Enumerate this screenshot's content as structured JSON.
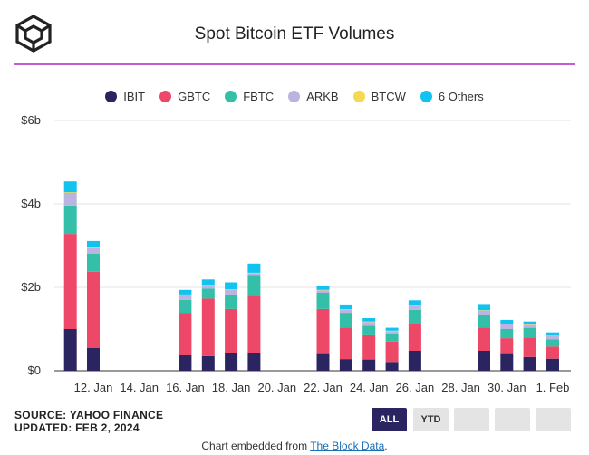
{
  "header": {
    "title": "Spot Bitcoin ETF Volumes"
  },
  "footer": {
    "source": "SOURCE: YAHOO FINANCE",
    "updated": "UPDATED: FEB 2, 2024",
    "embed_prefix": "Chart embedded from ",
    "embed_link": "The Block Data",
    "embed_suffix": "."
  },
  "controls": {
    "all_label": "ALL",
    "ytd_label": "YTD"
  },
  "colors": {
    "IBIT": "#2a2560",
    "GBTC": "#ee4869",
    "FBTC": "#33bfa8",
    "ARKB": "#b9b4e0",
    "BTCW": "#f5d94e",
    "6 Others": "#12c3ef"
  },
  "chart_data": {
    "type": "bar",
    "stacked": true,
    "ylim": [
      0,
      6
    ],
    "yticks": [
      0,
      2,
      4,
      6
    ],
    "ytick_labels": [
      "$0",
      "$2b",
      "$4b",
      "$6b"
    ],
    "xlabels": [
      "12. Jan",
      "14. Jan",
      "16. Jan",
      "18. Jan",
      "20. Jan",
      "22. Jan",
      "24. Jan",
      "26. Jan",
      "28. Jan",
      "30. Jan",
      "1. Feb"
    ],
    "xlabel_dates": [
      "2024-01-12",
      "2024-01-14",
      "2024-01-16",
      "2024-01-18",
      "2024-01-20",
      "2024-01-22",
      "2024-01-24",
      "2024-01-26",
      "2024-01-28",
      "2024-01-30",
      "2024-02-01"
    ],
    "x": [
      "2024-01-11",
      "2024-01-12",
      "2024-01-16",
      "2024-01-17",
      "2024-01-18",
      "2024-01-19",
      "2024-01-22",
      "2024-01-23",
      "2024-01-24",
      "2024-01-25",
      "2024-01-26",
      "2024-01-29",
      "2024-01-30",
      "2024-01-31",
      "2024-02-01"
    ],
    "grid": true,
    "legend_position": "top",
    "series": [
      {
        "name": "IBIT",
        "values": [
          1.0,
          0.55,
          0.37,
          0.35,
          0.42,
          0.42,
          0.4,
          0.28,
          0.27,
          0.21,
          0.48,
          0.48,
          0.4,
          0.33,
          0.29
        ]
      },
      {
        "name": "GBTC",
        "values": [
          2.28,
          1.82,
          1.01,
          1.38,
          1.06,
          1.38,
          1.08,
          0.76,
          0.58,
          0.49,
          0.66,
          0.56,
          0.38,
          0.47,
          0.29
        ]
      },
      {
        "name": "FBTC",
        "values": [
          0.68,
          0.44,
          0.32,
          0.24,
          0.34,
          0.5,
          0.39,
          0.35,
          0.23,
          0.19,
          0.32,
          0.3,
          0.22,
          0.23,
          0.17
        ]
      },
      {
        "name": "ARKB",
        "values": [
          0.3,
          0.14,
          0.12,
          0.08,
          0.12,
          0.04,
          0.06,
          0.08,
          0.09,
          0.06,
          0.09,
          0.1,
          0.11,
          0.07,
          0.08
        ]
      },
      {
        "name": "BTCW",
        "values": [
          0.02,
          0.01,
          0.01,
          0.01,
          0.01,
          0.01,
          0.01,
          0.01,
          0.01,
          0.01,
          0.01,
          0.01,
          0.01,
          0.01,
          0.01
        ]
      },
      {
        "name": "6 Others",
        "values": [
          0.26,
          0.15,
          0.11,
          0.13,
          0.17,
          0.22,
          0.1,
          0.11,
          0.08,
          0.07,
          0.13,
          0.15,
          0.1,
          0.07,
          0.08
        ]
      }
    ]
  }
}
